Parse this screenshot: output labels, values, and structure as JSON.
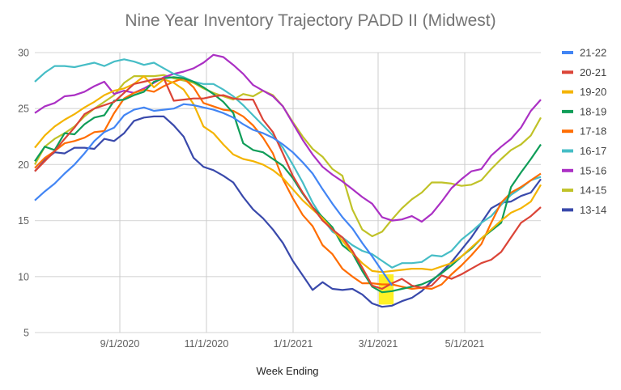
{
  "chart_data": {
    "type": "line",
    "title": "Nine Year Inventory Trajectory PADD II (Midwest)",
    "xlabel": "Week Ending",
    "ylabel": "",
    "ylim": [
      5,
      30
    ],
    "yticks": [
      5,
      10,
      15,
      20,
      25,
      30
    ],
    "xtick_labels": [
      "9/1/2020",
      "11/1/2020",
      "1/1/2021",
      "3/1/2021",
      "5/1/2021"
    ],
    "x_start_date": "7/3/2020",
    "x_interval": "weekly",
    "grid": true,
    "legend_position": "right",
    "highlight": {
      "description": "yellow highlight box",
      "week_range": [
        35,
        36
      ],
      "y_range": [
        7.5,
        10.2
      ],
      "color": "#ffee00"
    },
    "series": [
      {
        "name": "21-22",
        "color": "#4285f4",
        "values": [
          16.8,
          17.6,
          18.3,
          19.2,
          20.0,
          21.0,
          22.1,
          22.9,
          23.3,
          24.4,
          24.9,
          25.1,
          24.8,
          24.9,
          25.0,
          25.4,
          25.3,
          25.1,
          24.9,
          24.6,
          24.2,
          23.6,
          23.1,
          22.8,
          22.4,
          21.8,
          21.1,
          20.2,
          19.2,
          17.8,
          16.5,
          15.3,
          14.3,
          13.0,
          11.8,
          10.5,
          9.2
        ]
      },
      {
        "name": "20-21",
        "color": "#db4437",
        "values": [
          19.4,
          20.3,
          21.2,
          22.3,
          23.3,
          24.5,
          25.0,
          25.3,
          25.6,
          26.4,
          27.2,
          27.4,
          27.6,
          27.7,
          25.7,
          25.8,
          25.9,
          25.9,
          26.1,
          26.2,
          25.9,
          25.8,
          25.8,
          24.0,
          22.9,
          21.0,
          19.0,
          17.5,
          16.2,
          15.0,
          14.2,
          13.5,
          12.3,
          10.8,
          9.2,
          8.9,
          9.4,
          9.8,
          9.2,
          9.0,
          9.2,
          10.1,
          9.8,
          10.2,
          10.7,
          11.2,
          11.5,
          12.2,
          13.5,
          14.8,
          15.4,
          16.2
        ]
      },
      {
        "name": "19-20",
        "color": "#f4b400",
        "values": [
          21.5,
          22.6,
          23.4,
          24.0,
          24.5,
          25.1,
          25.6,
          26.2,
          26.6,
          26.8,
          27.2,
          27.9,
          26.9,
          27.6,
          27.3,
          26.7,
          25.4,
          23.4,
          22.8,
          21.8,
          20.9,
          20.5,
          20.3,
          20.0,
          19.5,
          18.8,
          17.8,
          16.8,
          16.0,
          15.2,
          14.2,
          13.2,
          12.1,
          11.2,
          10.5,
          10.4,
          10.5,
          10.6,
          10.7,
          10.7,
          10.6,
          10.9,
          11.2,
          11.8,
          12.6,
          13.4,
          14.2,
          15.0,
          15.7,
          16.1,
          16.7,
          18.2
        ]
      },
      {
        "name": "18-19",
        "color": "#0f9d58",
        "values": [
          20.3,
          21.6,
          21.3,
          22.8,
          22.7,
          23.6,
          24.2,
          24.4,
          25.7,
          25.8,
          26.2,
          26.5,
          27.4,
          27.7,
          27.8,
          27.7,
          27.4,
          26.9,
          26.3,
          25.6,
          24.6,
          21.9,
          21.3,
          21.1,
          20.5,
          19.9,
          18.8,
          17.4,
          16.2,
          15.3,
          14.4,
          12.8,
          12.1,
          10.5,
          9.1,
          8.6,
          8.7,
          8.9,
          9.1,
          9.3,
          9.7,
          10.3,
          11.0,
          11.8,
          12.5,
          13.4,
          14.1,
          14.8,
          18.0,
          19.3,
          20.5,
          21.8
        ]
      },
      {
        "name": "17-18",
        "color": "#ff6d01",
        "values": [
          19.7,
          20.6,
          21.2,
          21.9,
          22.1,
          22.4,
          22.9,
          23.0,
          24.6,
          25.9,
          26.4,
          26.7,
          26.5,
          27.0,
          27.4,
          27.7,
          26.9,
          25.5,
          25.2,
          24.9,
          24.8,
          24.3,
          23.5,
          22.4,
          21.0,
          18.7,
          17.0,
          15.5,
          14.5,
          12.8,
          12.0,
          10.7,
          10.0,
          9.4,
          9.4,
          9.3,
          9.3,
          9.1,
          8.9,
          9.0,
          8.9,
          9.3,
          10.2,
          11.0,
          11.9,
          12.9,
          14.8,
          16.6,
          17.5,
          18.0,
          18.6,
          19.2
        ]
      },
      {
        "name": "16-17",
        "color": "#46bdc6",
        "values": [
          27.4,
          28.2,
          28.8,
          28.8,
          28.7,
          28.9,
          29.1,
          28.8,
          29.2,
          29.4,
          29.2,
          28.9,
          29.1,
          28.6,
          28.1,
          27.8,
          27.4,
          27.2,
          27.2,
          26.7,
          26.1,
          25.3,
          24.4,
          23.5,
          22.6,
          21.5,
          20.0,
          18.4,
          16.6,
          15.2,
          14.0,
          13.5,
          12.8,
          12.3,
          12.0,
          11.4,
          10.8,
          11.2,
          11.2,
          11.3,
          11.9,
          11.8,
          12.3,
          13.3,
          14.0,
          14.8,
          15.4,
          16.4,
          17.3,
          17.9,
          18.6,
          18.9
        ]
      },
      {
        "name": "15-16",
        "color": "#ab30c4",
        "values": [
          24.6,
          25.2,
          25.5,
          26.1,
          26.2,
          26.5,
          27.0,
          27.4,
          26.3,
          26.6,
          26.4,
          26.8,
          27.3,
          27.8,
          28.1,
          28.3,
          28.6,
          29.1,
          29.8,
          29.6,
          28.9,
          28.1,
          27.1,
          26.6,
          26.1,
          25.2,
          23.7,
          22.2,
          20.9,
          19.8,
          19.1,
          18.5,
          17.8,
          17.1,
          16.5,
          15.3,
          15.0,
          15.1,
          15.4,
          14.9,
          15.6,
          16.7,
          17.9,
          18.7,
          19.4,
          19.6,
          20.8,
          21.6,
          22.3,
          23.3,
          24.8,
          25.8
        ]
      },
      {
        "name": "14-15",
        "color": "#c0c228",
        "values": [
          20.0,
          21.6,
          22.3,
          22.8,
          23.4,
          24.3,
          25.0,
          25.6,
          26.2,
          27.3,
          27.9,
          27.9,
          27.9,
          28.0,
          27.7,
          27.5,
          27.3,
          26.8,
          26.4,
          26.1,
          25.8,
          26.3,
          26.1,
          26.6,
          26.2,
          25.2,
          23.8,
          22.5,
          21.4,
          20.7,
          19.6,
          19.0,
          16.0,
          14.2,
          13.6,
          14.0,
          15.1,
          16.1,
          16.9,
          17.5,
          18.4,
          18.4,
          18.3,
          18.1,
          18.2,
          18.6,
          19.6,
          20.5,
          21.3,
          21.8,
          22.6,
          24.2
        ]
      },
      {
        "name": "13-14",
        "color": "#3949ab",
        "values": [
          19.4,
          20.4,
          21.1,
          21.0,
          21.5,
          21.5,
          21.4,
          22.3,
          22.1,
          22.8,
          23.9,
          24.2,
          24.3,
          24.3,
          23.5,
          22.5,
          20.6,
          19.8,
          19.5,
          19.0,
          18.4,
          17.1,
          16.0,
          15.2,
          14.2,
          13.0,
          11.4,
          10.1,
          8.8,
          9.5,
          8.9,
          8.8,
          8.9,
          8.4,
          7.6,
          7.3,
          7.4,
          7.8,
          8.1,
          8.7,
          9.6,
          10.4,
          11.3,
          12.4,
          13.5,
          14.8,
          16.1,
          16.6,
          16.7,
          17.2,
          17.5,
          18.7
        ]
      }
    ]
  }
}
